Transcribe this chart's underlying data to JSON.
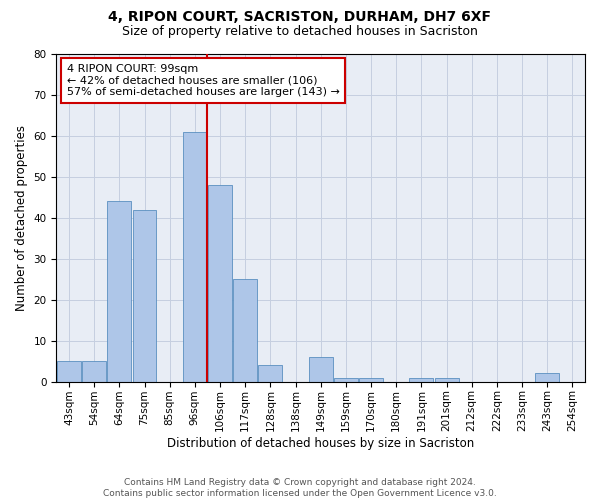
{
  "title1": "4, RIPON COURT, SACRISTON, DURHAM, DH7 6XF",
  "title2": "Size of property relative to detached houses in Sacriston",
  "xlabel": "Distribution of detached houses by size in Sacriston",
  "ylabel": "Number of detached properties",
  "categories": [
    "43sqm",
    "54sqm",
    "64sqm",
    "75sqm",
    "85sqm",
    "96sqm",
    "106sqm",
    "117sqm",
    "128sqm",
    "138sqm",
    "149sqm",
    "159sqm",
    "170sqm",
    "180sqm",
    "191sqm",
    "201sqm",
    "212sqm",
    "222sqm",
    "233sqm",
    "243sqm",
    "254sqm"
  ],
  "values": [
    5,
    5,
    44,
    42,
    0,
    61,
    48,
    25,
    4,
    0,
    6,
    1,
    1,
    0,
    1,
    1,
    0,
    0,
    0,
    2,
    0
  ],
  "bar_color": "#aec6e8",
  "bar_edge_color": "#5a8fc0",
  "vline_color": "#cc0000",
  "annotation_line1": "4 RIPON COURT: 99sqm",
  "annotation_line2": "← 42% of detached houses are smaller (106)",
  "annotation_line3": "57% of semi-detached houses are larger (143) →",
  "annotation_box_color": "#ffffff",
  "annotation_box_edge": "#cc0000",
  "ylim": [
    0,
    80
  ],
  "yticks": [
    0,
    10,
    20,
    30,
    40,
    50,
    60,
    70,
    80
  ],
  "grid_color": "#c5cfe0",
  "bg_color": "#e8edf5",
  "footer": "Contains HM Land Registry data © Crown copyright and database right 2024.\nContains public sector information licensed under the Open Government Licence v3.0.",
  "title1_fontsize": 10,
  "title2_fontsize": 9,
  "xlabel_fontsize": 8.5,
  "ylabel_fontsize": 8.5,
  "tick_fontsize": 7.5,
  "annot_fontsize": 8,
  "footer_fontsize": 6.5
}
